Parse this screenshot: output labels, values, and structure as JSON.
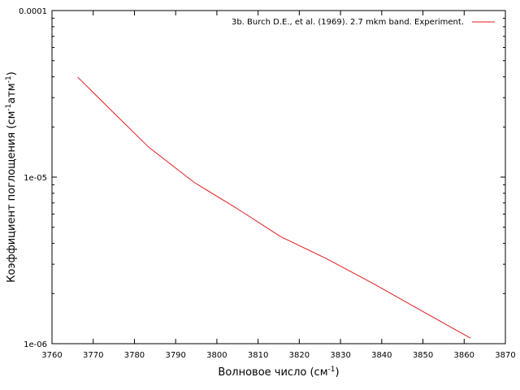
{
  "chart_data": {
    "type": "line",
    "title": "",
    "xlabel": {
      "base": "Волновое число (см",
      "sup": "-1",
      "end": ")"
    },
    "ylabel": {
      "base": "Коэффициент поглощения (см",
      "sup1": "-1",
      "mid": "атм",
      "sup2": "-1",
      "end": ")"
    },
    "xlim": [
      3760,
      3870
    ],
    "ylim": [
      1e-06,
      0.0001
    ],
    "yscale": "log",
    "x_ticks": [
      3760,
      3770,
      3780,
      3790,
      3800,
      3810,
      3820,
      3830,
      3840,
      3850,
      3860,
      3870
    ],
    "y_ticks": [
      {
        "value": 1e-06,
        "label": "1e-06"
      },
      {
        "value": 1e-05,
        "label": "1e-05"
      },
      {
        "value": 0.0001,
        "label": "0.0001"
      }
    ],
    "legend_position": "top-right",
    "series": [
      {
        "name": "3b. Burch D.E., et al. (1969). 2.7 mkm band. Experiment.",
        "color": "#e41a1c",
        "x": [
          3766.2,
          3775,
          3783.5,
          3794.5,
          3805,
          3815.5,
          3826.5,
          3838,
          3850,
          3861.5
        ],
        "y": [
          3.99e-05,
          2.43e-05,
          1.51e-05,
          9.3e-06,
          6.45e-06,
          4.39e-06,
          3.25e-06,
          2.29e-06,
          1.56e-06,
          1.08e-06
        ]
      }
    ]
  }
}
